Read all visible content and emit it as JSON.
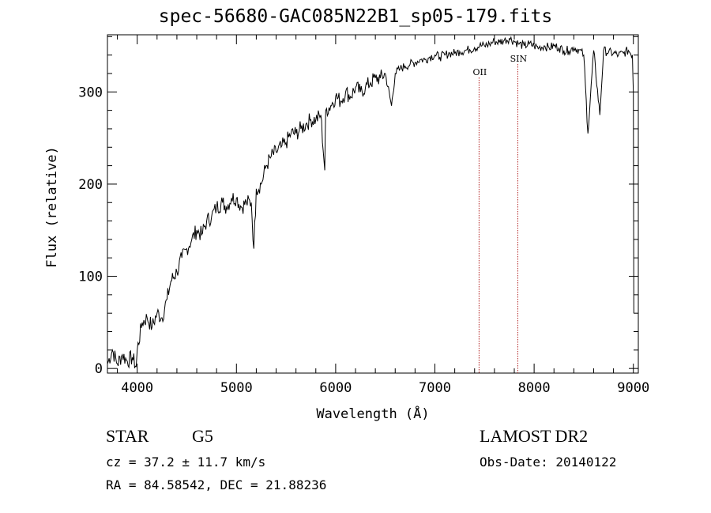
{
  "chart_data": {
    "type": "line",
    "title": "spec-56680-GAC085N22B1_sp05-179.fits",
    "xlabel": "Wavelength (Å)",
    "ylabel": "Flux (relative)",
    "xlim": [
      3700,
      9050
    ],
    "ylim": [
      -5,
      362
    ],
    "xticks": [
      4000,
      5000,
      6000,
      7000,
      8000,
      9000
    ],
    "yticks": [
      0,
      100,
      200,
      300
    ],
    "grid": false,
    "line_color": "#000000",
    "marker_color": "#b22222",
    "series": [
      {
        "x": [
          3700,
          3750,
          3800,
          3850,
          3900,
          3950,
          3990,
          4000,
          4050,
          4100,
          4150,
          4200,
          4250,
          4300,
          4340,
          4400,
          4450,
          4500,
          4550,
          4600,
          4650,
          4700,
          4750,
          4800,
          4860,
          4900,
          4950,
          5000,
          5050,
          5100,
          5150,
          5175,
          5200,
          5250,
          5300,
          5350,
          5400,
          5450,
          5500,
          5550,
          5600,
          5650,
          5700,
          5750,
          5800,
          5850,
          5890,
          5900,
          5950,
          6000,
          6050,
          6100,
          6150,
          6200,
          6250,
          6300,
          6350,
          6400,
          6450,
          6500,
          6563,
          6600,
          6650,
          6700,
          6750,
          6800,
          6850,
          6900,
          6950,
          7000,
          7050,
          7100,
          7150,
          7200,
          7250,
          7300,
          7350,
          7400,
          7450,
          7500,
          7550,
          7600,
          7650,
          7700,
          7750,
          7800,
          7850,
          7900,
          7950,
          8000,
          8050,
          8100,
          8150,
          8200,
          8250,
          8300,
          8350,
          8400,
          8450,
          8500,
          8542,
          8600,
          8662,
          8700,
          8750,
          8800,
          8850,
          8900,
          8950,
          8990,
          9000,
          9005
        ],
        "y": [
          5,
          20,
          5,
          15,
          8,
          12,
          2,
          20,
          50,
          55,
          45,
          60,
          55,
          75,
          95,
          105,
          120,
          130,
          140,
          150,
          145,
          160,
          165,
          175,
          180,
          175,
          185,
          185,
          175,
          180,
          180,
          130,
          195,
          200,
          220,
          230,
          235,
          240,
          245,
          255,
          255,
          260,
          265,
          270,
          270,
          275,
          215,
          280,
          285,
          295,
          290,
          300,
          295,
          305,
          300,
          305,
          310,
          315,
          315,
          320,
          285,
          320,
          325,
          328,
          330,
          332,
          335,
          335,
          338,
          340,
          338,
          340,
          342,
          342,
          344,
          345,
          346,
          348,
          350,
          350,
          352,
          355,
          354,
          356,
          358,
          355,
          352,
          350,
          352,
          350,
          348,
          350,
          348,
          350,
          348,
          345,
          345,
          348,
          346,
          340,
          255,
          345,
          275,
          345,
          343,
          342,
          340,
          342,
          345,
          340,
          300,
          60
        ]
      }
    ],
    "line_markers": [
      {
        "label": "OII",
        "x": 7445
      },
      {
        "label": "SIN",
        "x": 7835
      }
    ]
  },
  "info": {
    "object_class": "STAR",
    "subclass": "G5",
    "survey": "LAMOST DR2",
    "redshift_text": "cz = 37.2 ± 11.7 km/s",
    "obs_date_text": "Obs-Date: 20140122",
    "coords_text": "RA =  84.58542, DEC =  21.88236"
  }
}
